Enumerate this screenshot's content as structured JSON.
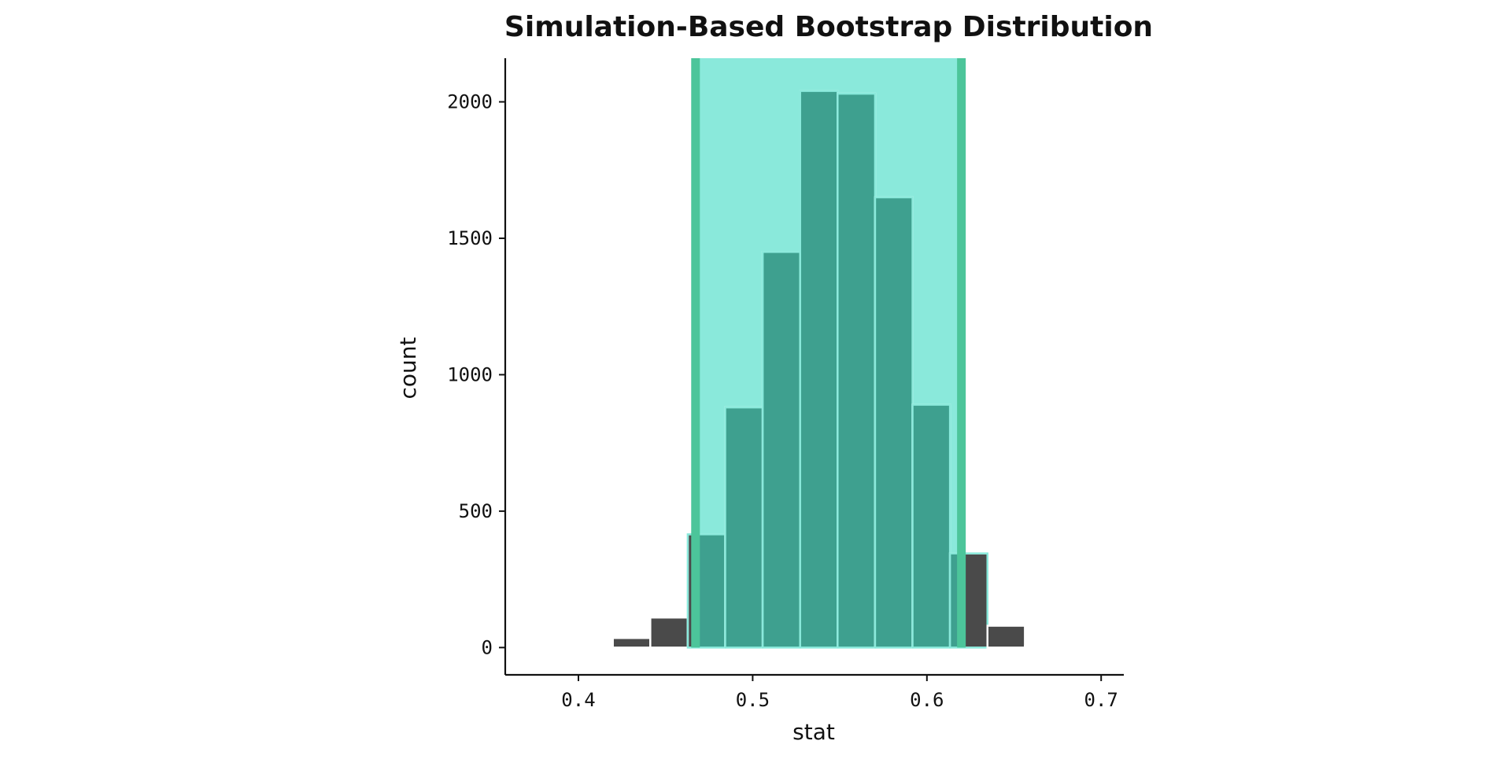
{
  "chart_data": {
    "type": "bar",
    "title": "Simulation-Based Bootstrap Distribution",
    "xlabel": "stat",
    "ylabel": "count",
    "xlim": [
      0.358,
      0.713
    ],
    "ylim": [
      -100,
      2160
    ],
    "x_ticks": [
      0.4,
      0.5,
      0.6,
      0.7
    ],
    "x_tick_labels": [
      "0.4",
      "0.5",
      "0.6",
      "0.7"
    ],
    "y_ticks": [
      0,
      500,
      1000,
      1500,
      2000
    ],
    "y_tick_labels": [
      "0",
      "500",
      "1000",
      "1500",
      "2000"
    ],
    "grid": false,
    "bin_width": 0.0215,
    "bins": [
      {
        "x": 0.4305,
        "count": 35
      },
      {
        "x": 0.452,
        "count": 110
      },
      {
        "x": 0.4735,
        "count": 415
      },
      {
        "x": 0.495,
        "count": 880
      },
      {
        "x": 0.5165,
        "count": 1450
      },
      {
        "x": 0.538,
        "count": 2040
      },
      {
        "x": 0.5595,
        "count": 2030
      },
      {
        "x": 0.581,
        "count": 1650
      },
      {
        "x": 0.6025,
        "count": 890
      },
      {
        "x": 0.624,
        "count": 345
      },
      {
        "x": 0.6455,
        "count": 80
      },
      {
        "x": 0.667,
        "count": 5
      }
    ],
    "confidence_interval": {
      "lower": 0.4672,
      "upper": 0.6198
    },
    "colors": {
      "bar": "#4a4a4a",
      "bar_in_interval": "#3ea08f",
      "shade": "#8ae9db",
      "interval_line": "#4cc59a",
      "bar_outline": "#ffffff"
    }
  }
}
